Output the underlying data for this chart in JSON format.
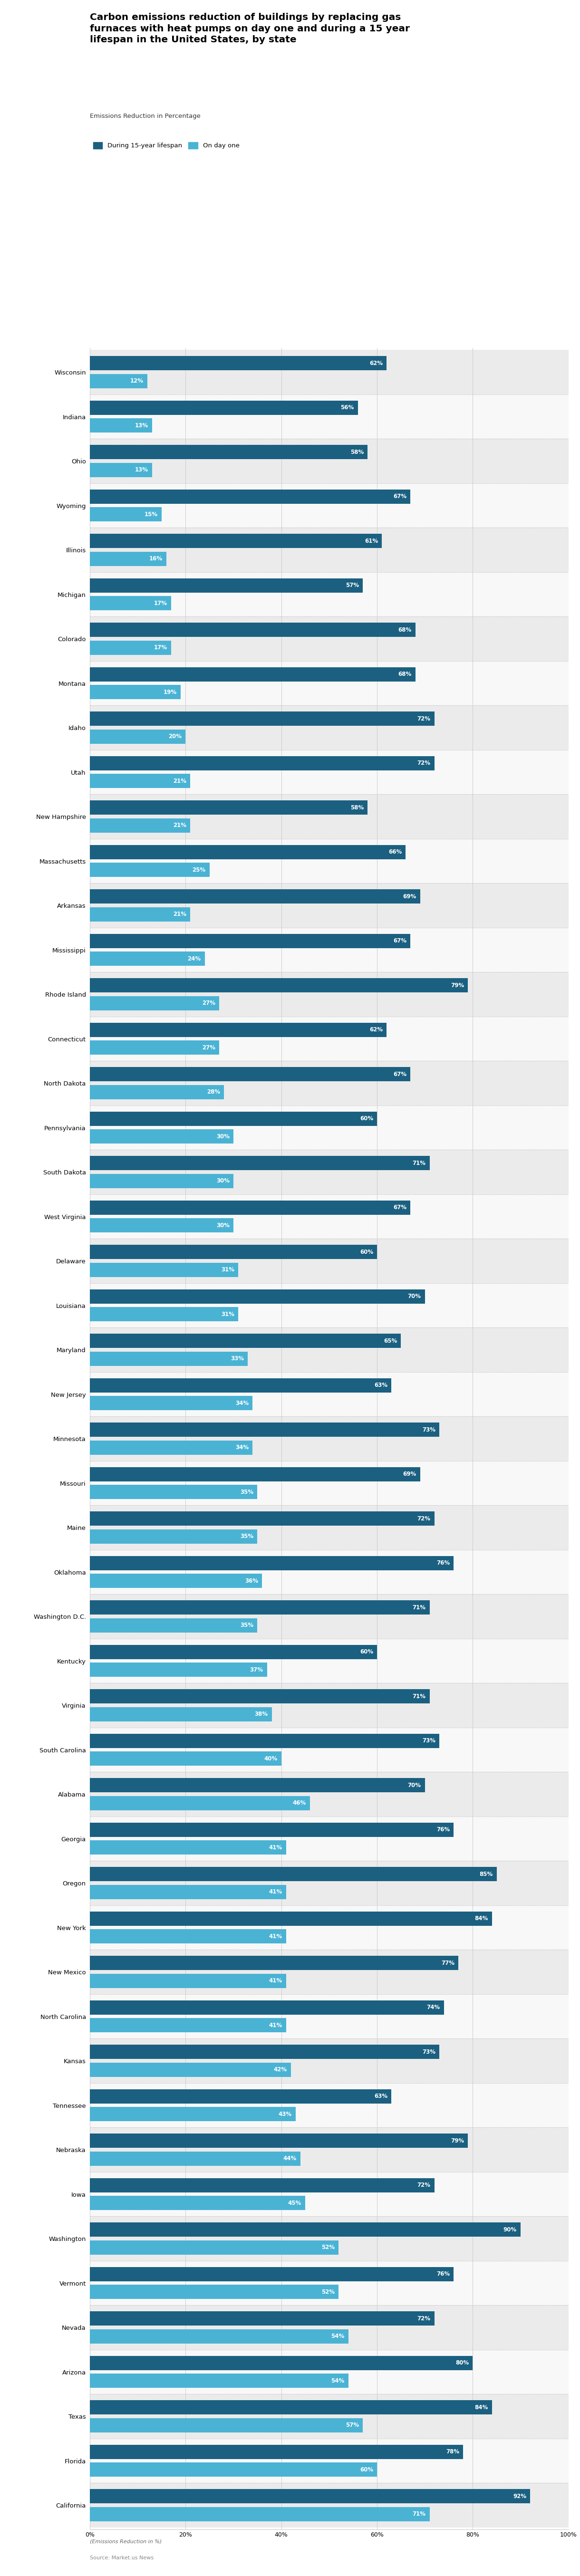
{
  "title": "Carbon emissions reduction of buildings by replacing gas\nfurnaces with heat pumps on day one and during a 15 year\nlifespan in the United States, by state",
  "subtitle": "Emissions Reduction in Percentage",
  "legend_labels": [
    "During 15-year lifespan",
    "On day one"
  ],
  "footnote_line1": "(Emissions Reduction in %)",
  "footnote_line2": "Source: Market.us News",
  "states": [
    "Wisconsin",
    "Indiana",
    "Ohio",
    "Wyoming",
    "Illinois",
    "Michigan",
    "Colorado",
    "Montana",
    "Idaho",
    "Utah",
    "New Hampshire",
    "Massachusetts",
    "Arkansas",
    "Mississippi",
    "Rhode Island",
    "Connecticut",
    "North Dakota",
    "Pennsylvania",
    "South Dakota",
    "West Virginia",
    "Delaware",
    "Louisiana",
    "Maryland",
    "New Jersey",
    "Minnesota",
    "Missouri",
    "Maine",
    "Oklahoma",
    "Washington D.C.",
    "Kentucky",
    "Virginia",
    "South Carolina",
    "Alabama",
    "Georgia",
    "Oregon",
    "New York",
    "New Mexico",
    "North Carolina",
    "Kansas",
    "Tennessee",
    "Nebraska",
    "Iowa",
    "Washington",
    "Vermont",
    "Nevada",
    "Arizona",
    "Texas",
    "Florida",
    "California"
  ],
  "lifespan_vals": [
    62,
    56,
    58,
    67,
    61,
    57,
    68,
    68,
    72,
    72,
    58,
    66,
    69,
    67,
    79,
    62,
    67,
    60,
    71,
    67,
    60,
    70,
    65,
    63,
    73,
    69,
    72,
    76,
    71,
    60,
    71,
    73,
    70,
    76,
    85,
    84,
    77,
    74,
    73,
    63,
    79,
    72,
    90,
    76,
    72,
    80,
    84,
    78,
    92
  ],
  "dayone_vals": [
    12,
    13,
    13,
    15,
    16,
    17,
    17,
    19,
    20,
    21,
    21,
    25,
    21,
    24,
    27,
    27,
    28,
    30,
    30,
    30,
    31,
    31,
    33,
    34,
    34,
    35,
    35,
    36,
    35,
    37,
    38,
    40,
    46,
    41,
    41,
    41,
    41,
    41,
    42,
    43,
    44,
    45,
    52,
    52,
    54,
    54,
    57,
    60,
    71
  ],
  "bar_color_lifespan": "#1b6080",
  "bar_color_dayone": "#4ab3d4",
  "xlim": [
    0,
    100
  ],
  "xtick_labels": [
    "0%",
    "20%",
    "40%",
    "60%",
    "80%",
    "100%"
  ],
  "xtick_vals": [
    0,
    20,
    40,
    60,
    80,
    100
  ],
  "row_colors": [
    "#ebebeb",
    "#f8f8f8"
  ],
  "grid_color": "#cccccc",
  "separator_color": "#b0b0b0"
}
